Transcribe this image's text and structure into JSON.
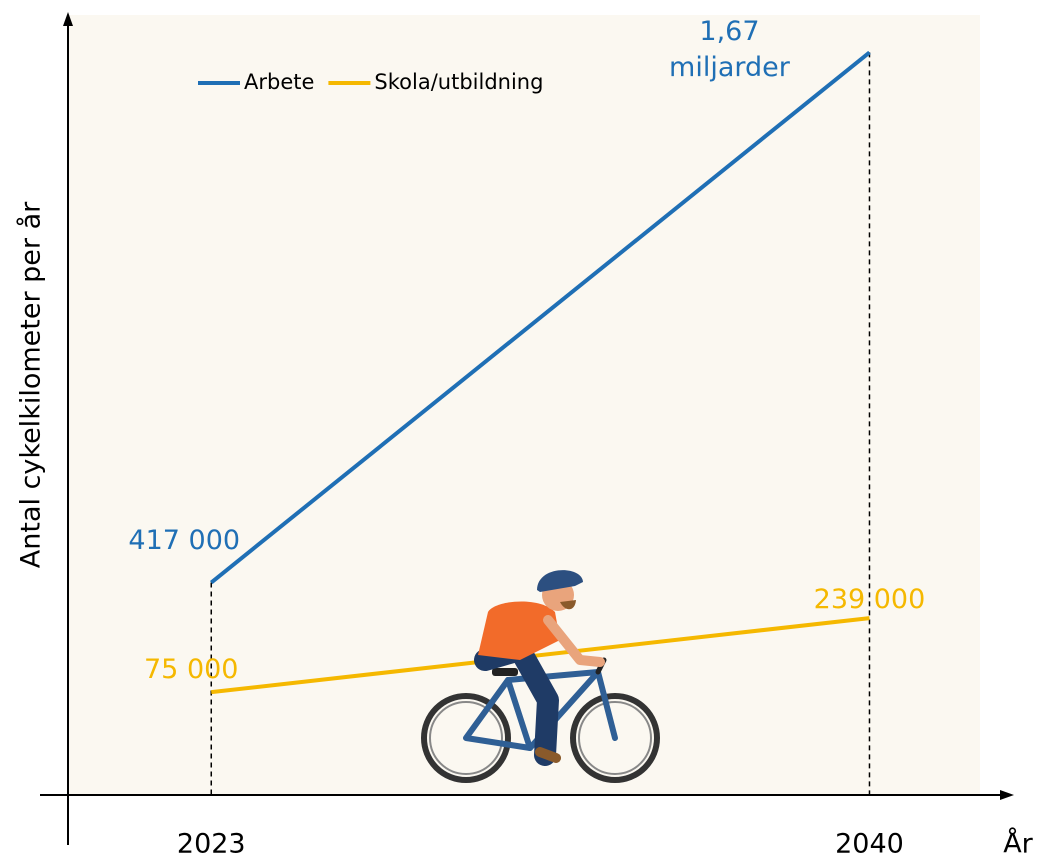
{
  "chart_data": {
    "type": "line",
    "y_label": "Antal cykelkilometer per år",
    "x_label": "År",
    "x": [
      2023,
      2040
    ],
    "xlim": [
      2019.3,
      2043.5
    ],
    "xticks": [
      2023,
      2040
    ],
    "ylim": [
      15000,
      3000000000
    ],
    "log_scale": true,
    "grid": false,
    "legend": "upper left",
    "series": [
      {
        "name": "Arbete",
        "color": "#1f6fb5",
        "values": [
          417000,
          1670000000
        ],
        "value_labels": [
          "417 000",
          "1,67 miljarder"
        ]
      },
      {
        "name": "Skola/utbildning",
        "color": "#f5b800",
        "values": [
          75000,
          239000
        ],
        "value_labels": [
          "75 000",
          "239 000"
        ]
      }
    ]
  }
}
